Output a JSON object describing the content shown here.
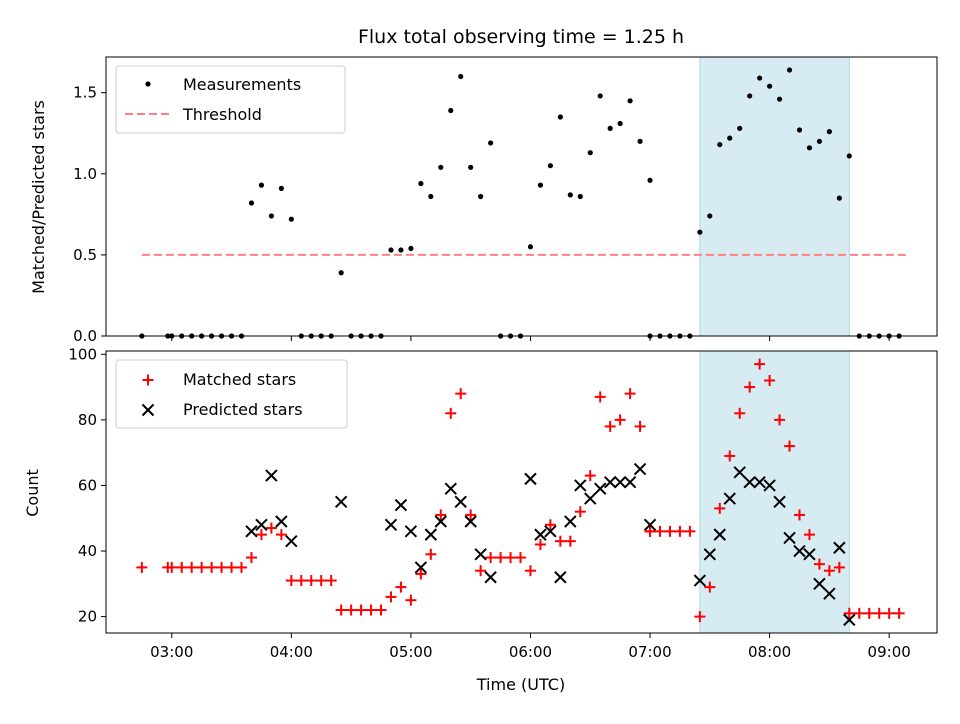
{
  "title": "Flux total observing time = 1.25 h",
  "xlabel": "Time (UTC)",
  "x_ticks": [
    "03:00",
    "04:00",
    "05:00",
    "06:00",
    "07:00",
    "08:00",
    "09:00"
  ],
  "colors": {
    "measurements": "#000000",
    "threshold": "#ff8080",
    "matched": "#ff0000",
    "predicted": "#000000",
    "highlight": "#add8e6"
  },
  "chart_data": [
    {
      "type": "scatter",
      "ylabel": "Matched/Predicted stars",
      "xlim": [
        "02:27",
        "09:24"
      ],
      "ylim": [
        0,
        1.72
      ],
      "y_ticks": [
        "0.0",
        "0.5",
        "1.0",
        "1.5"
      ],
      "highlight_span": [
        "07:25",
        "08:40"
      ],
      "legend": {
        "position": "upper left",
        "entries": [
          "Measurements",
          "Threshold"
        ]
      },
      "threshold": {
        "name": "Threshold",
        "y": 0.5,
        "x_range": [
          "02:45",
          "09:10"
        ],
        "style": "dashed"
      },
      "series": [
        {
          "name": "Measurements",
          "marker": "dot",
          "points": [
            [
              "02:45",
              0
            ],
            [
              "02:58",
              0
            ],
            [
              "03:00",
              0
            ],
            [
              "03:05",
              0
            ],
            [
              "03:10",
              0
            ],
            [
              "03:15",
              0
            ],
            [
              "03:20",
              0
            ],
            [
              "03:25",
              0
            ],
            [
              "03:30",
              0
            ],
            [
              "03:35",
              0
            ],
            [
              "03:40",
              0.82
            ],
            [
              "03:45",
              0.93
            ],
            [
              "03:50",
              0.74
            ],
            [
              "03:55",
              0.91
            ],
            [
              "04:00",
              0.72
            ],
            [
              "04:05",
              0
            ],
            [
              "04:10",
              0
            ],
            [
              "04:15",
              0
            ],
            [
              "04:20",
              0
            ],
            [
              "04:25",
              0.39
            ],
            [
              "04:30",
              0
            ],
            [
              "04:35",
              0
            ],
            [
              "04:40",
              0
            ],
            [
              "04:45",
              0
            ],
            [
              "04:50",
              0.53
            ],
            [
              "04:55",
              0.53
            ],
            [
              "05:00",
              0.54
            ],
            [
              "05:05",
              0.94
            ],
            [
              "05:10",
              0.86
            ],
            [
              "05:15",
              1.04
            ],
            [
              "05:20",
              1.39
            ],
            [
              "05:25",
              1.6
            ],
            [
              "05:30",
              1.04
            ],
            [
              "05:35",
              0.86
            ],
            [
              "05:40",
              1.19
            ],
            [
              "05:45",
              0
            ],
            [
              "05:50",
              0
            ],
            [
              "05:55",
              0
            ],
            [
              "06:00",
              0.55
            ],
            [
              "06:05",
              0.93
            ],
            [
              "06:10",
              1.05
            ],
            [
              "06:15",
              1.35
            ],
            [
              "06:20",
              0.87
            ],
            [
              "06:25",
              0.86
            ],
            [
              "06:30",
              1.13
            ],
            [
              "06:35",
              1.48
            ],
            [
              "06:40",
              1.28
            ],
            [
              "06:45",
              1.31
            ],
            [
              "06:50",
              1.45
            ],
            [
              "06:55",
              1.2
            ],
            [
              "07:00",
              0.96
            ],
            [
              "07:00",
              0
            ],
            [
              "07:05",
              0
            ],
            [
              "07:10",
              0
            ],
            [
              "07:15",
              0
            ],
            [
              "07:20",
              0
            ],
            [
              "07:25",
              0.64
            ],
            [
              "07:30",
              0.74
            ],
            [
              "07:35",
              1.18
            ],
            [
              "07:40",
              1.22
            ],
            [
              "07:45",
              1.28
            ],
            [
              "07:50",
              1.48
            ],
            [
              "07:55",
              1.59
            ],
            [
              "08:00",
              1.54
            ],
            [
              "08:05",
              1.46
            ],
            [
              "08:10",
              1.64
            ],
            [
              "08:15",
              1.27
            ],
            [
              "08:20",
              1.16
            ],
            [
              "08:25",
              1.2
            ],
            [
              "08:30",
              1.26
            ],
            [
              "08:35",
              0.85
            ],
            [
              "08:40",
              1.11
            ],
            [
              "08:45",
              0
            ],
            [
              "08:50",
              0
            ],
            [
              "08:55",
              0
            ],
            [
              "09:00",
              0
            ],
            [
              "09:05",
              0
            ]
          ]
        }
      ]
    },
    {
      "type": "scatter",
      "ylabel": "Count",
      "xlabel": "Time (UTC)",
      "xlim": [
        "02:27",
        "09:24"
      ],
      "ylim": [
        15,
        101
      ],
      "y_ticks": [
        "20",
        "40",
        "60",
        "80",
        "100"
      ],
      "highlight_span": [
        "07:25",
        "08:40"
      ],
      "legend": {
        "position": "upper left",
        "entries": [
          "Matched stars",
          "Predicted stars"
        ]
      },
      "series": [
        {
          "name": "Matched stars",
          "marker": "plus",
          "points": [
            [
              "02:45",
              35
            ],
            [
              "02:58",
              35
            ],
            [
              "03:00",
              35
            ],
            [
              "03:05",
              35
            ],
            [
              "03:10",
              35
            ],
            [
              "03:15",
              35
            ],
            [
              "03:20",
              35
            ],
            [
              "03:25",
              35
            ],
            [
              "03:30",
              35
            ],
            [
              "03:35",
              35
            ],
            [
              "03:40",
              38
            ],
            [
              "03:45",
              45
            ],
            [
              "03:50",
              47
            ],
            [
              "03:55",
              45
            ],
            [
              "04:00",
              31
            ],
            [
              "04:05",
              31
            ],
            [
              "04:10",
              31
            ],
            [
              "04:15",
              31
            ],
            [
              "04:20",
              31
            ],
            [
              "04:25",
              22
            ],
            [
              "04:30",
              22
            ],
            [
              "04:35",
              22
            ],
            [
              "04:40",
              22
            ],
            [
              "04:45",
              22
            ],
            [
              "04:50",
              26
            ],
            [
              "04:55",
              29
            ],
            [
              "05:00",
              25
            ],
            [
              "05:05",
              33
            ],
            [
              "05:10",
              39
            ],
            [
              "05:15",
              51
            ],
            [
              "05:20",
              82
            ],
            [
              "05:25",
              88
            ],
            [
              "05:30",
              51
            ],
            [
              "05:35",
              34
            ],
            [
              "05:40",
              38
            ],
            [
              "05:45",
              38
            ],
            [
              "05:50",
              38
            ],
            [
              "05:55",
              38
            ],
            [
              "06:00",
              34
            ],
            [
              "06:05",
              42
            ],
            [
              "06:10",
              48
            ],
            [
              "06:15",
              43
            ],
            [
              "06:20",
              43
            ],
            [
              "06:25",
              52
            ],
            [
              "06:30",
              63
            ],
            [
              "06:35",
              87
            ],
            [
              "06:40",
              78
            ],
            [
              "06:45",
              80
            ],
            [
              "06:50",
              88
            ],
            [
              "06:55",
              78
            ],
            [
              "07:00",
              46
            ],
            [
              "07:00",
              46
            ],
            [
              "07:05",
              46
            ],
            [
              "07:10",
              46
            ],
            [
              "07:15",
              46
            ],
            [
              "07:20",
              46
            ],
            [
              "07:25",
              20
            ],
            [
              "07:30",
              29
            ],
            [
              "07:35",
              53
            ],
            [
              "07:40",
              69
            ],
            [
              "07:45",
              82
            ],
            [
              "07:50",
              90
            ],
            [
              "07:55",
              97
            ],
            [
              "08:00",
              92
            ],
            [
              "08:05",
              80
            ],
            [
              "08:10",
              72
            ],
            [
              "08:15",
              51
            ],
            [
              "08:20",
              45
            ],
            [
              "08:25",
              36
            ],
            [
              "08:30",
              34
            ],
            [
              "08:35",
              35
            ],
            [
              "08:40",
              21
            ],
            [
              "08:45",
              21
            ],
            [
              "08:50",
              21
            ],
            [
              "08:55",
              21
            ],
            [
              "09:00",
              21
            ],
            [
              "09:05",
              21
            ]
          ]
        },
        {
          "name": "Predicted stars",
          "marker": "x",
          "points": [
            [
              "03:40",
              46
            ],
            [
              "03:45",
              48
            ],
            [
              "03:50",
              63
            ],
            [
              "03:55",
              49
            ],
            [
              "04:00",
              43
            ],
            [
              "04:25",
              55
            ],
            [
              "04:50",
              48
            ],
            [
              "04:55",
              54
            ],
            [
              "05:00",
              46
            ],
            [
              "05:05",
              35
            ],
            [
              "05:10",
              45
            ],
            [
              "05:15",
              49
            ],
            [
              "05:20",
              59
            ],
            [
              "05:25",
              55
            ],
            [
              "05:30",
              49
            ],
            [
              "05:35",
              39
            ],
            [
              "05:40",
              32
            ],
            [
              "06:00",
              62
            ],
            [
              "06:05",
              45
            ],
            [
              "06:10",
              46
            ],
            [
              "06:15",
              32
            ],
            [
              "06:20",
              49
            ],
            [
              "06:25",
              60
            ],
            [
              "06:30",
              56
            ],
            [
              "06:35",
              59
            ],
            [
              "06:40",
              61
            ],
            [
              "06:45",
              61
            ],
            [
              "06:50",
              61
            ],
            [
              "06:55",
              65
            ],
            [
              "07:00",
              48
            ],
            [
              "07:25",
              31
            ],
            [
              "07:30",
              39
            ],
            [
              "07:35",
              45
            ],
            [
              "07:40",
              56
            ],
            [
              "07:45",
              64
            ],
            [
              "07:50",
              61
            ],
            [
              "07:55",
              61
            ],
            [
              "08:00",
              60
            ],
            [
              "08:05",
              55
            ],
            [
              "08:10",
              44
            ],
            [
              "08:15",
              40
            ],
            [
              "08:20",
              39
            ],
            [
              "08:25",
              30
            ],
            [
              "08:30",
              27
            ],
            [
              "08:35",
              41
            ],
            [
              "08:40",
              19
            ]
          ]
        }
      ]
    }
  ]
}
